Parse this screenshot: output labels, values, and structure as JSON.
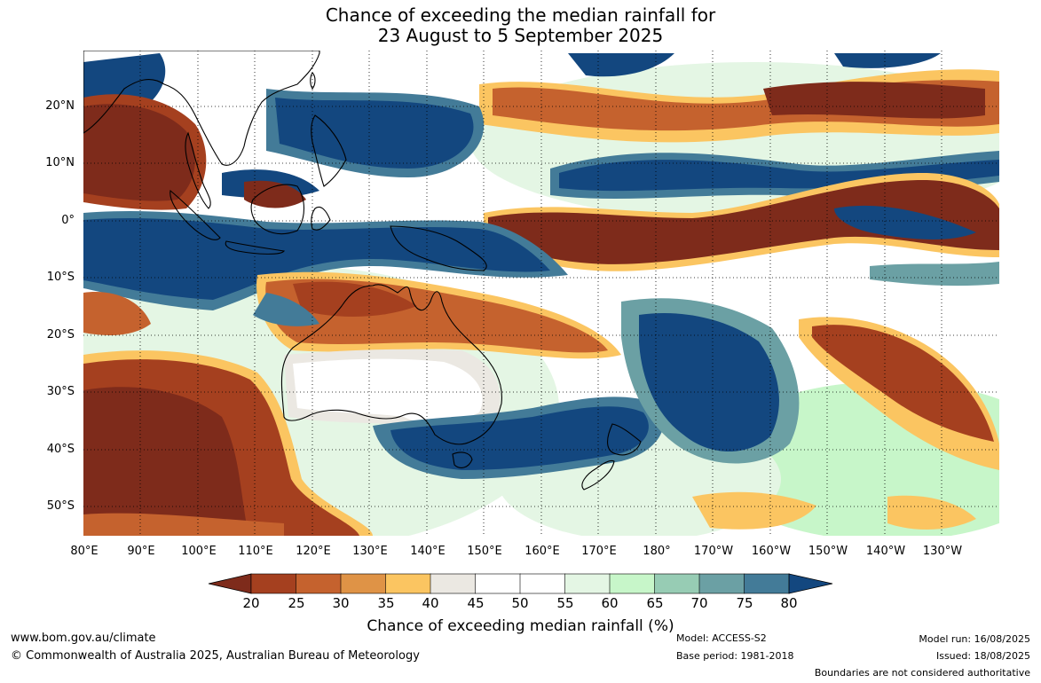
{
  "title_line1": "Chance of exceeding the median rainfall for",
  "title_line2": "23 August to 5 September 2025",
  "lat_labels": [
    "20°N",
    "10°N",
    "0°",
    "10°S",
    "20°S",
    "30°S",
    "40°S",
    "50°S"
  ],
  "lon_labels": [
    "80°E",
    "90°E",
    "100°E",
    "110°E",
    "120°E",
    "130°E",
    "140°E",
    "150°E",
    "160°E",
    "170°E",
    "180°",
    "170°W",
    "160°W",
    "150°W",
    "140°W",
    "130°W"
  ],
  "colorbar": {
    "ticks": [
      "20",
      "25",
      "30",
      "35",
      "40",
      "45",
      "50",
      "55",
      "60",
      "65",
      "70",
      "75",
      "80"
    ],
    "colors": [
      "#7e2b1b",
      "#a5401f",
      "#c5622e",
      "#df9346",
      "#fbc561",
      "#ebe8e2",
      "#ffffff",
      "#ffffff",
      "#e4f6e4",
      "#c7f6c9",
      "#97ccb4",
      "#6ba0a4",
      "#437b98",
      "#13477f"
    ],
    "title": "Chance of exceeding median rainfall (%)"
  },
  "footer": {
    "url": "www.bom.gov.au/climate",
    "copyright": "© Commonwealth of Australia 2025, Australian Bureau of Meteorology",
    "model": "Model: ACCESS-S2",
    "base_period": "Base period: 1981-2018",
    "model_run": "Model run: 16/08/2025",
    "issued": "Issued: 18/08/2025",
    "disclaimer": "Boundaries are not considered authoritative"
  }
}
